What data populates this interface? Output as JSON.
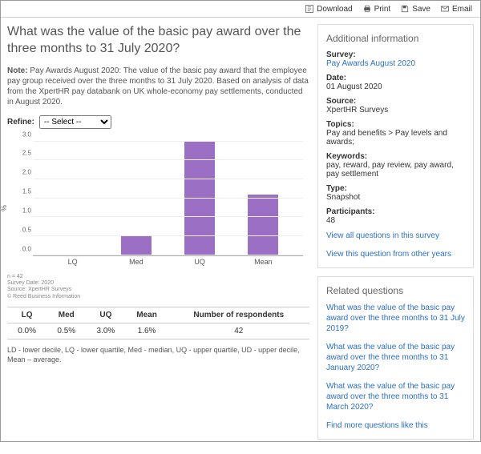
{
  "toolbar": {
    "download": "Download",
    "print": "Print",
    "save": "Save",
    "email": "Email"
  },
  "main": {
    "title": "What was the value of the basic pay award over the three months to 31 July 2020?",
    "note_label": "Note:",
    "note": " Pay Awards August 2020: The value of the basic pay award that the employee pay group received over the three months to 31 July 2020. Based on analysis of data from the XpertHR pay databank on UK whole-economy pay settlements, conducted in August 2020.",
    "refine_label": "Refine:",
    "refine_placeholder": "-- Select --",
    "legend": "LD - lower decile, LQ - lower quartile, Med - median, UQ - upper quartile, UD - upper decile, Mean – average."
  },
  "chart": {
    "type": "bar",
    "y_label": "%",
    "y_max": 3.0,
    "y_ticks": [
      "0.0",
      "0.5",
      "1.0",
      "1.5",
      "2.0",
      "2.5",
      "3.0"
    ],
    "categories": [
      "LQ",
      "Med",
      "UQ",
      "Mean"
    ],
    "values": [
      0.0,
      0.5,
      3.0,
      1.6
    ],
    "bar_color": "#9a6fc4",
    "grid_color": "#eeeeee",
    "footer_n": "n = 42",
    "footer_date": "Survey Date: 2020",
    "footer_source": "Source: XpertHR Surveys",
    "footer_copyright": "© Reed Business Information"
  },
  "table": {
    "headers": [
      "LQ",
      "Med",
      "UQ",
      "Mean",
      "Number of respondents"
    ],
    "row": [
      "0.0%",
      "0.5%",
      "3.0%",
      "1.6%",
      "42"
    ]
  },
  "sidebar": {
    "info_title": "Additional information",
    "survey_label": "Survey:",
    "survey_value": "Pay Awards August 2020",
    "date_label": "Date:",
    "date_value": "01 August 2020",
    "source_label": "Source:",
    "source_value": "XpertHR Surveys",
    "topics_label": "Topics:",
    "topics_value": "Pay and benefits > Pay levels and awards;",
    "keywords_label": "Keywords:",
    "keywords_value": "pay, reward, pay review, pay award, pay settlement",
    "type_label": "Type:",
    "type_value": "Snapshot",
    "participants_label": "Participants:",
    "participants_value": "48",
    "link_all": "View all questions in this survey",
    "link_years": "View this question from other years",
    "related_title": "Related questions",
    "related": [
      "What was the value of the basic pay award over the three months to 31 July 2019?",
      "What was the value of the basic pay award over the three months to 31 January 2020?",
      "What was the value of the basic pay award over the three months to 31 March 2020?"
    ],
    "find_more": "Find more questions like this"
  }
}
